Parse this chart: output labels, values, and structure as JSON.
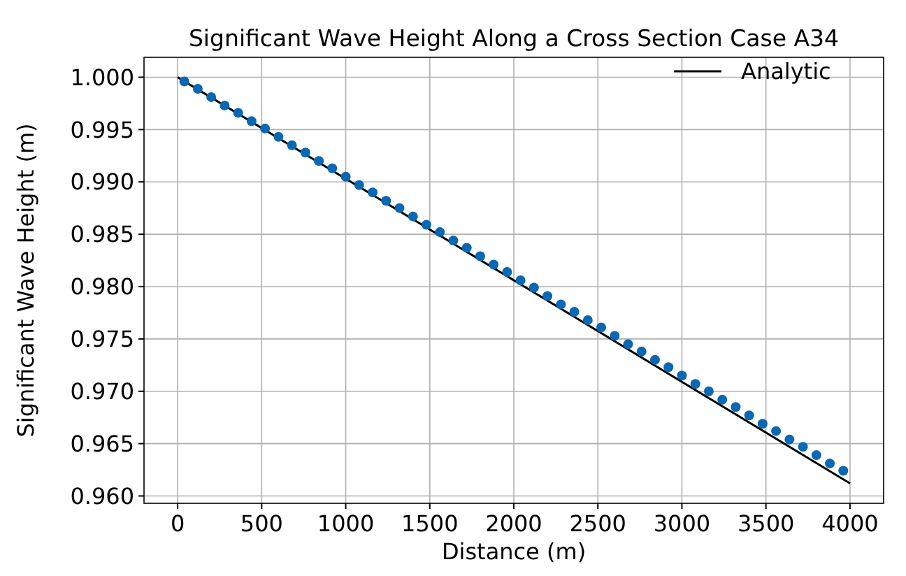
{
  "chart_data": {
    "type": "scatter",
    "title": "Significant Wave Height Along a Cross Section Case A34",
    "xlabel": "Distance (m)",
    "ylabel": "Significant Wave Height (m)",
    "xlim": [
      -200,
      4200
    ],
    "xticks": [
      0,
      500,
      1000,
      1500,
      2000,
      2500,
      3000,
      3500,
      4000
    ],
    "ylim": [
      0.9593,
      1.0019
    ],
    "yticks": [
      {
        "value": 0.96,
        "label": "0.960"
      },
      {
        "value": 0.965,
        "label": "0.965"
      },
      {
        "value": 0.97,
        "label": "0.970"
      },
      {
        "value": 0.975,
        "label": "0.975"
      },
      {
        "value": 0.98,
        "label": "0.980"
      },
      {
        "value": 0.985,
        "label": "0.985"
      },
      {
        "value": 0.99,
        "label": "0.990"
      },
      {
        "value": 0.995,
        "label": "0.995"
      },
      {
        "value": 1.0,
        "label": "1.000"
      }
    ],
    "grid": true,
    "legend": "top right",
    "series": [
      {
        "name": "Analytic",
        "type": "line",
        "color": "#000000",
        "marker": "none",
        "line_style": "solid",
        "x": [
          0,
          4000
        ],
        "values": [
          1.0,
          0.9612
        ]
      },
      {
        "color": "#0868b4",
        "marker": "circle",
        "x": [
          40,
          120,
          200,
          280,
          360,
          440,
          520,
          600,
          680,
          760,
          840,
          920,
          1000,
          1080,
          1160,
          1240,
          1320,
          1400,
          1480,
          1560,
          1640,
          1720,
          1800,
          1880,
          1960,
          2040,
          2120,
          2200,
          2280,
          2360,
          2440,
          2520,
          2600,
          2680,
          2760,
          2840,
          2920,
          3000,
          3080,
          3160,
          3240,
          3320,
          3400,
          3480,
          3560,
          3640,
          3720,
          3800,
          3880,
          3960
        ],
        "values": [
          0.9996,
          0.9989,
          0.9981,
          0.9973,
          0.9966,
          0.9958,
          0.9951,
          0.9943,
          0.9935,
          0.9928,
          0.992,
          0.9913,
          0.9905,
          0.9897,
          0.989,
          0.9882,
          0.9875,
          0.9867,
          0.9859,
          0.9852,
          0.9844,
          0.9837,
          0.9829,
          0.9821,
          0.9814,
          0.9806,
          0.9799,
          0.9791,
          0.9783,
          0.9776,
          0.9768,
          0.9761,
          0.9753,
          0.9745,
          0.9738,
          0.973,
          0.9723,
          0.9715,
          0.9707,
          0.97,
          0.9692,
          0.9685,
          0.9677,
          0.9669,
          0.9662,
          0.9654,
          0.9647,
          0.9639,
          0.9631,
          0.9624
        ]
      }
    ]
  }
}
